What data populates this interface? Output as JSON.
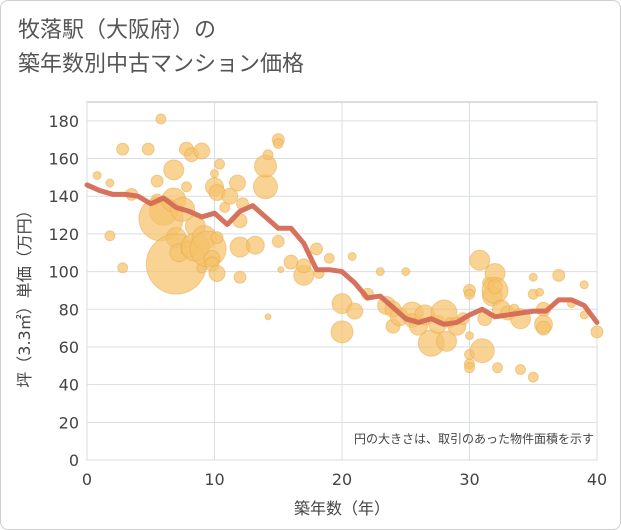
{
  "chart_data": {
    "type": "scatter",
    "title_lines": [
      "牧落駅（大阪府）の",
      "築年数別中古マンション価格"
    ],
    "xlabel": "築年数（年）",
    "ylabel": "坪（3.3㎡）単価（万円）",
    "xlim": [
      0,
      40
    ],
    "ylim": [
      0,
      190
    ],
    "xticks": [
      0,
      10,
      20,
      30,
      40
    ],
    "yticks": [
      0,
      20,
      40,
      60,
      80,
      100,
      120,
      140,
      160,
      180
    ],
    "grid": true,
    "note": "円の大きさは、取引のあった物件面積を示す",
    "colors": {
      "bubble": "#f5c26b",
      "bubble_edge": "#e8a94a",
      "line": "#d46a55",
      "grid": "#d9dde8",
      "plot_edge": "#bbbbbb"
    },
    "points": [
      [
        0.8,
        151,
        4
      ],
      [
        1.8,
        147,
        4
      ],
      [
        1.8,
        119,
        5
      ],
      [
        2.8,
        102,
        5
      ],
      [
        2.8,
        165,
        6
      ],
      [
        3.5,
        141,
        6
      ],
      [
        4.8,
        165,
        6
      ],
      [
        5.5,
        148,
        6
      ],
      [
        5.5,
        138,
        6
      ],
      [
        5.8,
        181,
        5
      ],
      [
        6.0,
        132,
        14
      ],
      [
        5.8,
        128,
        22
      ],
      [
        6.8,
        154,
        10
      ],
      [
        6.8,
        138,
        12
      ],
      [
        7.0,
        118,
        10
      ],
      [
        7.0,
        104,
        30
      ],
      [
        7.2,
        110,
        9
      ],
      [
        7.5,
        133,
        12
      ],
      [
        7.8,
        145,
        5
      ],
      [
        7.8,
        165,
        7
      ],
      [
        8.0,
        112,
        8
      ],
      [
        8.2,
        162,
        7
      ],
      [
        8.5,
        124,
        10
      ],
      [
        8.5,
        113,
        14
      ],
      [
        9.0,
        164,
        8
      ],
      [
        9.0,
        102,
        5
      ],
      [
        9.2,
        118,
        12
      ],
      [
        9.5,
        112,
        18
      ],
      [
        9.8,
        107,
        8
      ],
      [
        9.8,
        104,
        7
      ],
      [
        10.0,
        152,
        4
      ],
      [
        10.0,
        145,
        9
      ],
      [
        10.2,
        142,
        8
      ],
      [
        10.2,
        99,
        8
      ],
      [
        10.2,
        118,
        6
      ],
      [
        10.4,
        157,
        5
      ],
      [
        10.8,
        134,
        5
      ],
      [
        11.2,
        140,
        8
      ],
      [
        11.8,
        147,
        8
      ],
      [
        12.0,
        127,
        7
      ],
      [
        12.0,
        97,
        6
      ],
      [
        12.0,
        113,
        10
      ],
      [
        12.2,
        136,
        6
      ],
      [
        13.2,
        114,
        9
      ],
      [
        14.0,
        145,
        12
      ],
      [
        14.0,
        156,
        11
      ],
      [
        14.2,
        162,
        5
      ],
      [
        14.2,
        76,
        3
      ],
      [
        15.0,
        170,
        6
      ],
      [
        15.0,
        168,
        5
      ],
      [
        15.0,
        116,
        6
      ],
      [
        15.2,
        101,
        3
      ],
      [
        16.0,
        105,
        7
      ],
      [
        17.0,
        98,
        10
      ],
      [
        17.0,
        103,
        7
      ],
      [
        18.0,
        112,
        6
      ],
      [
        18.2,
        99,
        5
      ],
      [
        19.0,
        107,
        5
      ],
      [
        20.0,
        83,
        10
      ],
      [
        20.0,
        68,
        11
      ],
      [
        20.8,
        108,
        4
      ],
      [
        21.0,
        79,
        8
      ],
      [
        22.0,
        88,
        6
      ],
      [
        23.0,
        100,
        4
      ],
      [
        23.5,
        82,
        9
      ],
      [
        24.0,
        71,
        7
      ],
      [
        24.0,
        80,
        8
      ],
      [
        24.5,
        76,
        9
      ],
      [
        25.0,
        100,
        4
      ],
      [
        25.5,
        78,
        11
      ],
      [
        25.5,
        74,
        7
      ],
      [
        26.0,
        71,
        9
      ],
      [
        26.5,
        77,
        10
      ],
      [
        27.0,
        62,
        13
      ],
      [
        27.5,
        72,
        9
      ],
      [
        28.0,
        78,
        13
      ],
      [
        28.2,
        63,
        10
      ],
      [
        28.5,
        73,
        5
      ],
      [
        29.0,
        71,
        9
      ],
      [
        29.5,
        75,
        6
      ],
      [
        30.0,
        90,
        6
      ],
      [
        30.0,
        88,
        5
      ],
      [
        30.0,
        66,
        4
      ],
      [
        30.0,
        56,
        5
      ],
      [
        30.0,
        51,
        5
      ],
      [
        30.0,
        49,
        5
      ],
      [
        30.8,
        106,
        10
      ],
      [
        31.0,
        58,
        12
      ],
      [
        31.2,
        75,
        7
      ],
      [
        31.5,
        94,
        6
      ],
      [
        31.8,
        87,
        10
      ],
      [
        32.0,
        99,
        10
      ],
      [
        32.0,
        90,
        13
      ],
      [
        32.0,
        92,
        7
      ],
      [
        32.2,
        49,
        5
      ],
      [
        32.5,
        80,
        9
      ],
      [
        33.0,
        78,
        7
      ],
      [
        33.5,
        80,
        5
      ],
      [
        34.0,
        75,
        10
      ],
      [
        34.0,
        48,
        5
      ],
      [
        35.0,
        97,
        4
      ],
      [
        35.0,
        88,
        5
      ],
      [
        35.0,
        44,
        5
      ],
      [
        35.5,
        89,
        4
      ],
      [
        35.8,
        80,
        7
      ],
      [
        35.8,
        72,
        9
      ],
      [
        35.8,
        70,
        7
      ],
      [
        37.0,
        98,
        6
      ],
      [
        38.0,
        83,
        4
      ],
      [
        39.0,
        93,
        4
      ],
      [
        39.0,
        77,
        4
      ],
      [
        40.0,
        68,
        6
      ]
    ],
    "trend": {
      "x": [
        0,
        1,
        2,
        3,
        4,
        5,
        6,
        7,
        8,
        9,
        10,
        11,
        12,
        13,
        14,
        15,
        16,
        17,
        18,
        19,
        20,
        21,
        22,
        23,
        24,
        25,
        26,
        27,
        28,
        29,
        30,
        31,
        32,
        33,
        34,
        35,
        36,
        37,
        38,
        39,
        40
      ],
      "y": [
        146,
        143,
        141,
        141,
        140,
        136,
        139,
        134,
        132,
        129,
        131,
        125,
        132,
        135,
        129,
        123,
        123,
        115,
        101,
        101,
        100,
        94,
        86,
        87,
        81,
        75,
        73,
        75,
        72,
        73,
        77,
        80,
        76,
        77,
        78,
        79,
        79,
        85,
        85,
        82,
        73
      ]
    }
  }
}
